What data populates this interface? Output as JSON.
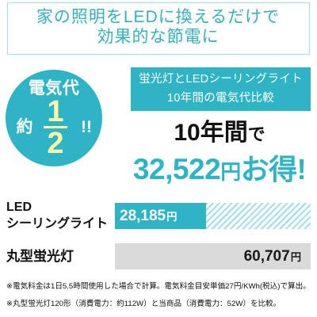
{
  "colors": {
    "accent": "#2eb4c5",
    "intro_text": "#36afc0",
    "intro_border": "#a9dde5",
    "hatch": "#a6dfe7",
    "fraction": "#fff6a8",
    "text": "#1a1a1a"
  },
  "intro": {
    "line1": "家の照明をLEDに換えるだけで",
    "line2": "効果的な節電に"
  },
  "badge": {
    "label": "電気代",
    "prefix": "約",
    "numerator": "1",
    "denominator": "2",
    "suffix": "!!"
  },
  "banner": {
    "line1": "蛍光灯とLEDシーリングライト",
    "line2": "10年間の電気代比較"
  },
  "headline": {
    "period": "10年間",
    "particle": "で",
    "amount": "32,522",
    "currency": "円",
    "tail": "お得!"
  },
  "chart_data": {
    "type": "bar",
    "orientation": "horizontal",
    "categories": [
      [
        "LED",
        "シーリングライト"
      ],
      [
        "丸型蛍光灯"
      ]
    ],
    "values": [
      28185,
      60707
    ],
    "value_labels": [
      "28,185",
      "60,707"
    ],
    "unit": "円",
    "bar_colors": [
      "#2eb4c5",
      "#dadada"
    ],
    "value_label_colors": [
      "#ffffff",
      "#1a1a1a"
    ]
  },
  "notes": [
    "※電気料金は1日5.5時間使用した場合で計算。電気料金目安単価27円/KWh(税込)で算出。",
    "※丸型蛍光灯120形（消費電力：約112W）と当商品（消費電力：52W）を比較。"
  ]
}
